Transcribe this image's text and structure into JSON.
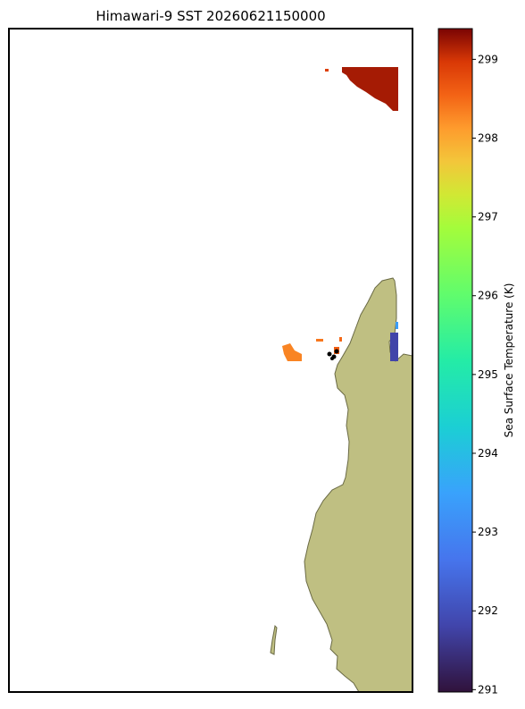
{
  "title": "Himawari-9 SST 20260621150000",
  "colorbar": {
    "label": "Sea Surface Temperature (K)",
    "clim": [
      290.97,
      299.39
    ],
    "ticks": [
      291,
      292,
      293,
      294,
      295,
      296,
      297,
      298,
      299
    ]
  },
  "sst_patches": [
    299.2,
    298.9,
    298.3,
    298.4,
    298.5,
    298.6,
    293.4,
    291.8
  ]
}
